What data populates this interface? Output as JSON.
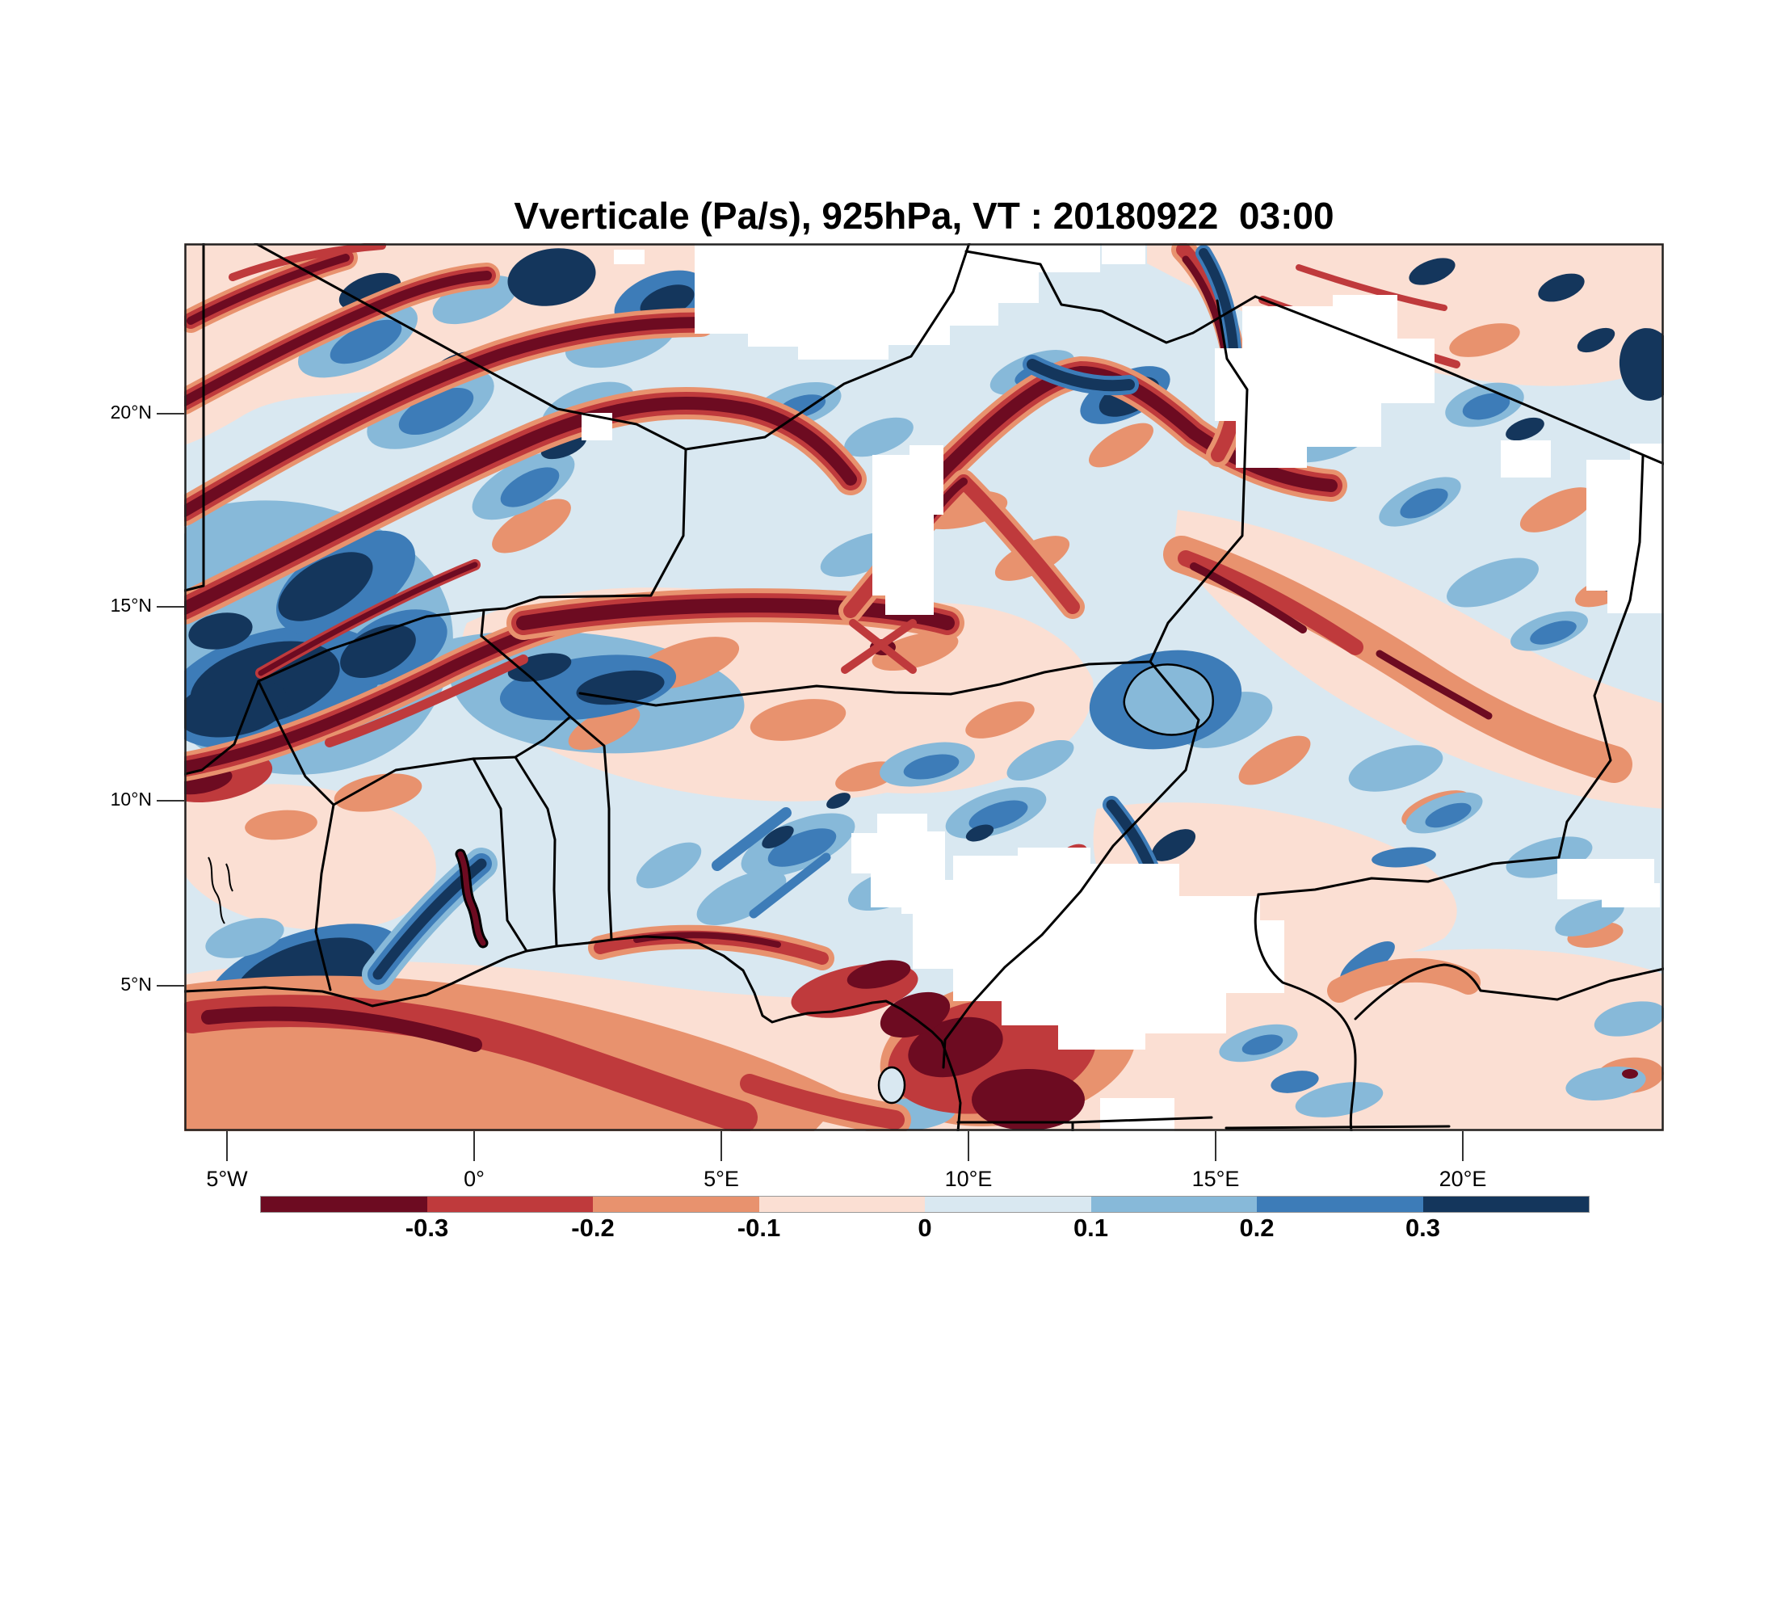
{
  "title": "Vverticale (Pa/s), 925hPa, VT : 20180922  03:00",
  "axes": {
    "lat_ticks": [
      "20°N",
      "15°N",
      "10°N",
      "5°N"
    ],
    "lon_ticks": [
      "5°W",
      "0°",
      "5°E",
      "10°E",
      "15°E",
      "20°E"
    ]
  },
  "colorbar": {
    "tick_labels": [
      "-0.3",
      "-0.2",
      "-0.1",
      "0",
      "0.1",
      "0.2",
      "0.3"
    ],
    "colors": [
      "#6d0b21",
      "#bf3a3c",
      "#e8926e",
      "#fbdfd3",
      "#d9e8f1",
      "#87b9d9",
      "#3d7cb8",
      "#14365c"
    ],
    "outline_color": "#999999"
  },
  "chart_data": {
    "type": "heatmap",
    "title": "Vverticale (Pa/s), 925hPa, VT : 20180922  03:00",
    "variable": "Vverticale",
    "units": "Pa/s",
    "level": "925hPa",
    "valid_time": "20180922 03:00",
    "x": {
      "label": "longitude",
      "ticks": [
        "5°W",
        "0°",
        "5°E",
        "10°E",
        "15°E",
        "20°E"
      ],
      "range_deg": [
        -5.9,
        24.0
      ]
    },
    "y": {
      "label": "latitude",
      "ticks": [
        "20°N",
        "15°N",
        "10°N",
        "5°N"
      ],
      "range_deg": [
        1.4,
        24.5
      ]
    },
    "colorbar_levels": [
      -0.3,
      -0.2,
      -0.1,
      0,
      0.1,
      0.2,
      0.3
    ],
    "colorbar_colors": [
      "#6d0b21",
      "#bf3a3c",
      "#e8926e",
      "#fbdfd3",
      "#d9e8f1",
      "#87b9d9",
      "#3d7cb8",
      "#14365c"
    ],
    "legend_position": "bottom",
    "grid": false,
    "notes": "Filled-contour map of 925 hPa vertical velocity over West/Central Africa with country borders. Strong negative (dark red) squall-line bands over Mali/southwest Sahara and along the Guinea coast; dark blue cells of positive values adjacent to them; white patches are missing data (terrain); Lake Chad and Lake Volta outlined."
  }
}
